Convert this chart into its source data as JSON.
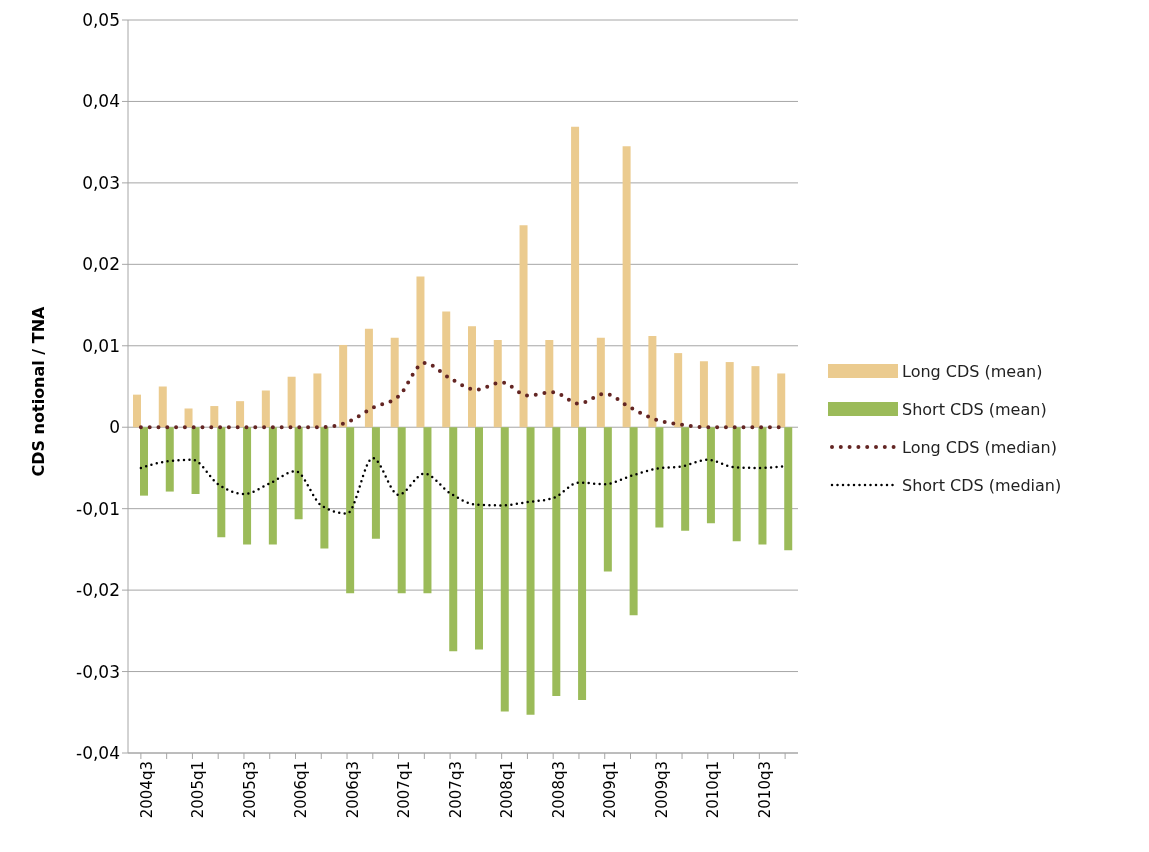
{
  "chart_data": {
    "type": "bar",
    "ylabel": "CDS notional / TNA",
    "categories": [
      "2004q3",
      null,
      "2005q1",
      null,
      "2005q3",
      null,
      "2006q1",
      null,
      "2006q3",
      null,
      "2007q1",
      null,
      "2007q3",
      null,
      "2008q1",
      null,
      "2008q3",
      null,
      "2009q1",
      null,
      "2009q3",
      null,
      "2010q1",
      null,
      "2010q3",
      null
    ],
    "series": [
      {
        "name": "Long CDS (mean)",
        "color": "#ebcb8f",
        "values": [
          0.004,
          0.005,
          0.0023,
          0.0026,
          0.0032,
          0.0045,
          0.0062,
          0.0066,
          0.0101,
          0.0121,
          0.011,
          0.0185,
          0.0142,
          0.0124,
          0.0107,
          0.0248,
          0.0107,
          0.0369,
          0.011,
          0.0345,
          0.0112,
          0.0091,
          0.0081,
          0.008,
          0.0075,
          0.0066
        ]
      },
      {
        "name": "Short CDS (mean)",
        "color": "#9bbb59",
        "values": [
          -0.0084,
          -0.0079,
          -0.0082,
          -0.0135,
          -0.0144,
          -0.0144,
          -0.0113,
          -0.0149,
          -0.0204,
          -0.0137,
          -0.0204,
          -0.0204,
          -0.0275,
          -0.0273,
          -0.0349,
          -0.0353,
          -0.033,
          -0.0335,
          -0.0177,
          -0.0231,
          -0.0123,
          -0.0127,
          -0.0118,
          -0.014,
          -0.0144,
          -0.0151
        ]
      },
      {
        "name": "Long CDS (median)",
        "type": "line",
        "line_style": "dotted",
        "color": "#632523",
        "values": [
          0,
          0,
          0,
          0,
          0,
          0,
          0,
          0,
          0.0006,
          0.0024,
          0.0038,
          0.0079,
          0.006,
          0.0046,
          0.0055,
          0.0039,
          0.0043,
          0.0029,
          0.0041,
          0.0024,
          0.0009,
          0.0003,
          0,
          0,
          0,
          0
        ]
      },
      {
        "name": "Short CDS (median)",
        "type": "line",
        "line_style": "dotted",
        "color": "#000000",
        "values": [
          -0.005,
          -0.0042,
          -0.004,
          -0.007,
          -0.0082,
          -0.0069,
          -0.0054,
          -0.0096,
          -0.0106,
          -0.0038,
          -0.0083,
          -0.0057,
          -0.0081,
          -0.0095,
          -0.0096,
          -0.0092,
          -0.0087,
          -0.0068,
          -0.007,
          -0.006,
          -0.0051,
          -0.0048,
          -0.004,
          -0.0049,
          -0.005,
          -0.0048
        ]
      }
    ],
    "ylim": [
      -0.04,
      0.05
    ],
    "yticks": [
      {
        "value": -0.04,
        "label": "-0,04"
      },
      {
        "value": -0.03,
        "label": "-0,03"
      },
      {
        "value": -0.02,
        "label": "-0,02"
      },
      {
        "value": -0.01,
        "label": "-0,01"
      },
      0,
      {
        "value": 0.01,
        "label": "0,01"
      },
      {
        "value": 0.02,
        "label": "0,02"
      },
      {
        "value": 0.03,
        "label": "0,03"
      },
      {
        "value": 0.04,
        "label": "0,04"
      },
      {
        "value": 0.05,
        "label": "0,05"
      }
    ],
    "grid": "y",
    "legend": "right",
    "marker": "none"
  }
}
